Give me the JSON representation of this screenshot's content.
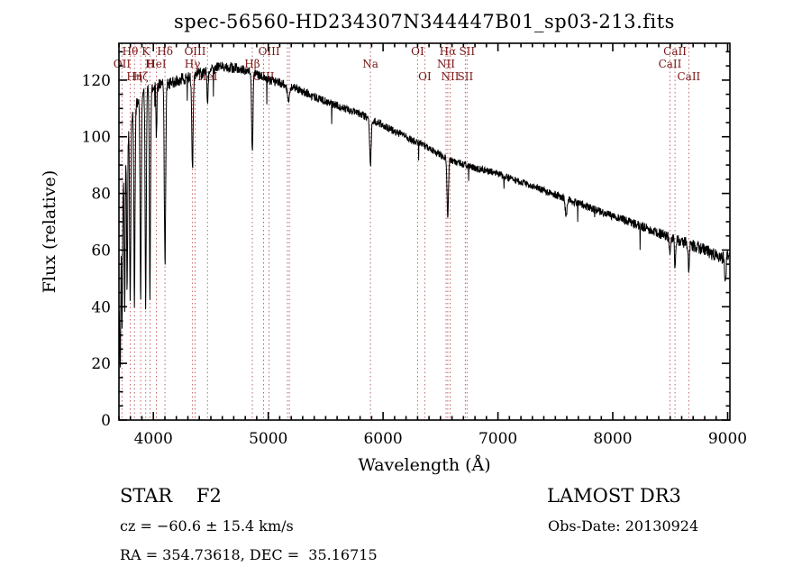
{
  "annotations": {
    "class_label": "STAR    F2",
    "survey_label": "LAMOST DR3",
    "cz_label": "cz = −60.6 ± 15.4 km/s",
    "obs_date_label": "Obs-Date: 20130924",
    "radec_label": "RA = 354.73618, DEC =  35.16715"
  },
  "chart_data": {
    "type": "line",
    "title": "spec-56560-HD234307N344447B01_sp03-213.fits",
    "xlabel": "Wavelength (Å)",
    "ylabel": "Flux (relative)",
    "xlim": [
      3700,
      9020
    ],
    "ylim": [
      0,
      133
    ],
    "x_ticks": [
      4000,
      5000,
      6000,
      7000,
      8000,
      9000
    ],
    "y_ticks": [
      0,
      20,
      40,
      60,
      80,
      100,
      120
    ],
    "x_minor_step": 100,
    "y_minor_step": 5,
    "grid": false,
    "legend": "none",
    "line_color": "#000000",
    "marker_line_color": "#c46262",
    "marker_label_color": "#7a1414",
    "spectrum": {
      "sample_step": 2.5,
      "noise_seed": 42,
      "start_at_zero": true,
      "noise_anchors": [
        [
          3700,
          2.8
        ],
        [
          4200,
          2.2
        ],
        [
          5000,
          1.6
        ],
        [
          6000,
          1.3
        ],
        [
          7000,
          1.2
        ],
        [
          8000,
          1.5
        ],
        [
          9020,
          2.4
        ]
      ],
      "continuum_anchors": [
        [
          3700,
          34
        ],
        [
          3720,
          72
        ],
        [
          3745,
          90
        ],
        [
          3780,
          101
        ],
        [
          3820,
          108
        ],
        [
          3870,
          113
        ],
        [
          3920,
          116
        ],
        [
          3980,
          117
        ],
        [
          4050,
          118
        ],
        [
          4150,
          119
        ],
        [
          4300,
          121
        ],
        [
          4450,
          123
        ],
        [
          4600,
          125
        ],
        [
          4750,
          124
        ],
        [
          4900,
          122
        ],
        [
          5000,
          120
        ],
        [
          5100,
          119
        ],
        [
          5250,
          117
        ],
        [
          5400,
          114
        ],
        [
          5600,
          111
        ],
        [
          5800,
          108
        ],
        [
          6000,
          104
        ],
        [
          6200,
          100
        ],
        [
          6400,
          96
        ],
        [
          6563,
          92
        ],
        [
          6800,
          89
        ],
        [
          7000,
          87
        ],
        [
          7200,
          84
        ],
        [
          7400,
          81
        ],
        [
          7600,
          78
        ],
        [
          7800,
          75
        ],
        [
          8000,
          72
        ],
        [
          8200,
          69
        ],
        [
          8400,
          66
        ],
        [
          8600,
          63
        ],
        [
          8800,
          60
        ],
        [
          8950,
          57
        ],
        [
          9020,
          58
        ]
      ],
      "absorption_lines": [
        [
          3712,
          38,
          4
        ],
        [
          3727,
          46,
          4
        ],
        [
          3750,
          52,
          4
        ],
        [
          3771,
          56,
          4
        ],
        [
          3798,
          62,
          5
        ],
        [
          3835,
          68,
          5
        ],
        [
          3889,
          73,
          5
        ],
        [
          3933,
          77,
          5
        ],
        [
          3970,
          72,
          5
        ],
        [
          4026,
          18,
          4
        ],
        [
          4101,
          64,
          6
        ],
        [
          4340,
          34,
          6
        ],
        [
          4471,
          11,
          5
        ],
        [
          4861,
          27,
          6
        ],
        [
          5175,
          6,
          8
        ],
        [
          5890,
          17,
          6
        ],
        [
          6563,
          21,
          6
        ],
        [
          7594,
          6,
          8
        ],
        [
          8498,
          7,
          5
        ],
        [
          8542,
          10,
          5
        ],
        [
          8662,
          10,
          5
        ],
        [
          8980,
          9,
          6
        ]
      ]
    },
    "marked_lines": [
      {
        "wl": 3727,
        "label": "OII",
        "row": 1
      },
      {
        "wl": 3798,
        "label": "Hθ",
        "row": 0
      },
      {
        "wl": 3835,
        "label": "Hη",
        "row": 2
      },
      {
        "wl": 3889,
        "label": "Hζ",
        "row": 2
      },
      {
        "wl": 3933,
        "label": "K",
        "row": 0
      },
      {
        "wl": 3970,
        "label": "H",
        "row": 1
      },
      {
        "wl": 4026,
        "label": "HeI",
        "row": 1
      },
      {
        "wl": 4101,
        "label": "Hδ",
        "row": 0
      },
      {
        "wl": 4340,
        "label": "Hγ",
        "row": 1
      },
      {
        "wl": 4363,
        "label": "OIII",
        "row": 0
      },
      {
        "wl": 4471,
        "label": "HeI",
        "row": 2
      },
      {
        "wl": 4861,
        "label": "Hβ",
        "row": 1
      },
      {
        "wl": 4959,
        "label": "OIII",
        "row": 2
      },
      {
        "wl": 5007,
        "label": "OIII",
        "row": 0
      },
      {
        "wl": 5167,
        "label": "",
        "row": 0
      },
      {
        "wl": 5184,
        "label": "",
        "row": 0
      },
      {
        "wl": 5890,
        "label": "Na",
        "row": 1
      },
      {
        "wl": 6300,
        "label": "OI",
        "row": 0
      },
      {
        "wl": 6363,
        "label": "OI",
        "row": 2
      },
      {
        "wl": 6548,
        "label": "NII",
        "row": 1
      },
      {
        "wl": 6563,
        "label": "Hα",
        "row": 0
      },
      {
        "wl": 6584,
        "label": "NII",
        "row": 2
      },
      {
        "wl": 6716,
        "label": "SII",
        "row": 2
      },
      {
        "wl": 6731,
        "label": "SII",
        "row": 0
      },
      {
        "wl": 8498,
        "label": "CaII",
        "row": 1
      },
      {
        "wl": 8542,
        "label": "CaII",
        "row": 0
      },
      {
        "wl": 8662,
        "label": "CaII",
        "row": 2
      }
    ]
  }
}
